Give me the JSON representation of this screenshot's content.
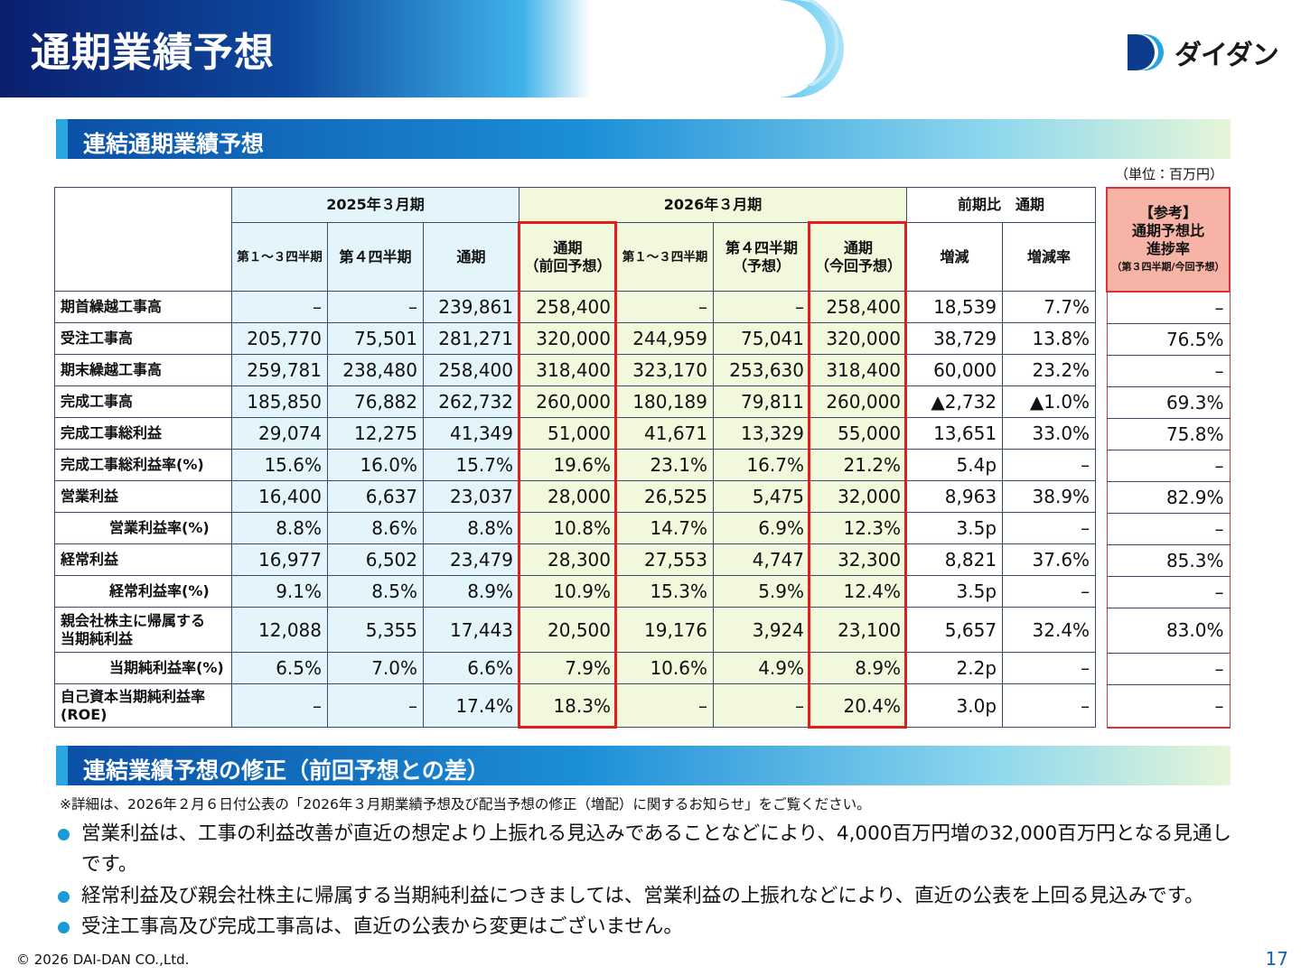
{
  "header": {
    "title": "通期業績予想",
    "logo": "ダイダン"
  },
  "section1": {
    "title": "連結通期業績予想",
    "unit": "（単位：百万円）"
  },
  "table": {
    "group_headers": [
      "2025年３月期",
      "2026年３月期",
      "前期比　通期"
    ],
    "column_headers": [
      [
        "第１～３四半期"
      ],
      [
        "第４四半期"
      ],
      [
        "通期"
      ],
      [
        "通期",
        "（前回予想）"
      ],
      [
        "第１～３四半期"
      ],
      [
        "第４四半期",
        "（予想）"
      ],
      [
        "通期",
        "（今回予想）"
      ],
      [
        "増減"
      ],
      [
        "増減率"
      ]
    ],
    "reference_header": [
      "【参考】",
      "通期予想比",
      "進捗率",
      "（第３四半期/今回予想）"
    ],
    "rows": [
      {
        "label": [
          "期首繰越工事高"
        ],
        "cells": [
          "–",
          "–",
          "239,861",
          "258,400",
          "–",
          "–",
          "258,400",
          "18,539",
          "7.7%"
        ],
        "reference": "–"
      },
      {
        "label": [
          "受注工事高"
        ],
        "cells": [
          "205,770",
          "75,501",
          "281,271",
          "320,000",
          "244,959",
          "75,041",
          "320,000",
          "38,729",
          "13.8%"
        ],
        "reference": "76.5%"
      },
      {
        "label": [
          "期末繰越工事高"
        ],
        "cells": [
          "259,781",
          "238,480",
          "258,400",
          "318,400",
          "323,170",
          "253,630",
          "318,400",
          "60,000",
          "23.2%"
        ],
        "reference": "–"
      },
      {
        "label": [
          "完成工事高"
        ],
        "cells": [
          "185,850",
          "76,882",
          "262,732",
          "260,000",
          "180,189",
          "79,811",
          "260,000",
          "▲2,732",
          "▲1.0%"
        ],
        "reference": "69.3%"
      },
      {
        "label": [
          "完成工事総利益"
        ],
        "cells": [
          "29,074",
          "12,275",
          "41,349",
          "51,000",
          "41,671",
          "13,329",
          "55,000",
          "13,651",
          "33.0%"
        ],
        "reference": "75.8%"
      },
      {
        "label": [
          "完成工事総利益率(%)"
        ],
        "cells": [
          "15.6%",
          "16.0%",
          "15.7%",
          "19.6%",
          "23.1%",
          "16.7%",
          "21.2%",
          "5.4p",
          "–"
        ],
        "reference": "–"
      },
      {
        "label": [
          "営業利益"
        ],
        "cells": [
          "16,400",
          "6,637",
          "23,037",
          "28,000",
          "26,525",
          "5,475",
          "32,000",
          "8,963",
          "38.9%"
        ],
        "reference": "82.9%"
      },
      {
        "label": [
          "営業利益率(%)"
        ],
        "cells": [
          "8.8%",
          "8.6%",
          "8.8%",
          "10.8%",
          "14.7%",
          "6.9%",
          "12.3%",
          "3.5p",
          "–"
        ],
        "reference": "–"
      },
      {
        "label": [
          "経常利益"
        ],
        "cells": [
          "16,977",
          "6,502",
          "23,479",
          "28,300",
          "27,553",
          "4,747",
          "32,300",
          "8,821",
          "37.6%"
        ],
        "reference": "85.3%"
      },
      {
        "label": [
          "経常利益率(%)"
        ],
        "cells": [
          "9.1%",
          "8.5%",
          "8.9%",
          "10.9%",
          "15.3%",
          "5.9%",
          "12.4%",
          "3.5p",
          "–"
        ],
        "reference": "–"
      },
      {
        "label": [
          "親会社株主に帰属する",
          "当期純利益"
        ],
        "cells": [
          "12,088",
          "5,355",
          "17,443",
          "20,500",
          "19,176",
          "3,924",
          "23,100",
          "5,657",
          "32.4%"
        ],
        "reference": "83.0%"
      },
      {
        "label": [
          "当期純利益率(%)"
        ],
        "cells": [
          "6.5%",
          "7.0%",
          "6.6%",
          "7.9%",
          "10.6%",
          "4.9%",
          "8.9%",
          "2.2p",
          "–"
        ],
        "reference": "–"
      },
      {
        "label": [
          "自己資本当期純利益率",
          "(ROE)"
        ],
        "cells": [
          "–",
          "–",
          "17.4%",
          "18.3%",
          "–",
          "–",
          "20.4%",
          "3.0p",
          "–"
        ],
        "reference": "–"
      }
    ]
  },
  "section2": {
    "title": "連結業績予想の修正（前回予想との差）",
    "note": "※詳細は、2026年２月６日付公表の「2026年３月期業績予想及び配当予想の修正（増配）に関するお知らせ」をご覧ください。",
    "bullets": [
      "営業利益は、工事の利益改善が直近の想定より上振れる見込みであることなどにより、4,000百万円増の32,000百万円となる見通しです。",
      "経常利益及び親会社株主に帰属する当期純利益につきましては、営業利益の上振れなどにより、直近の公表を上回る見込みです。",
      "受注工事高及び完成工事高は、直近の公表から変更はございません。"
    ]
  },
  "footer": {
    "copyright": "© 2026 DAI-DAN CO.,Ltd.",
    "page": "17"
  }
}
